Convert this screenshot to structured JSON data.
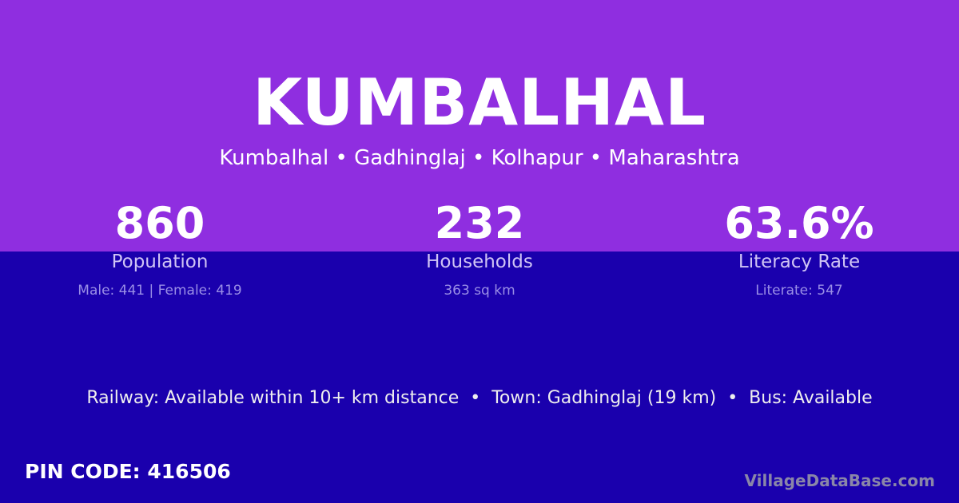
{
  "title": "KUMBALHAL",
  "breadcrumb": "Kumbalhal • Gadhinglaj • Kolhapur • Maharashtra",
  "stats": [
    {
      "value": "860",
      "label": "Population",
      "detail": "Male: 441 | Female: 419"
    },
    {
      "value": "232",
      "label": "Households",
      "detail": "363 sq km"
    },
    {
      "value": "63.6%",
      "label": "Literacy Rate",
      "detail": "Literate: 547"
    }
  ],
  "info": "Railway: Available within 10+ km distance  •  Town: Gadhinglaj (19 km)  •  Bus: Available",
  "pin": "PIN CODE: 416506",
  "brand": "VillageDataBase.com",
  "colors": {
    "top": "#8f2ee0",
    "bottom": "#1a00ad"
  }
}
